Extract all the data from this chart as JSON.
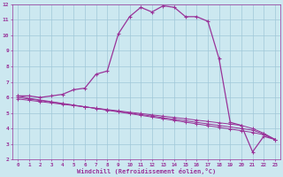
{
  "xlabel": "Windchill (Refroidissement éolien,°C)",
  "background_color": "#cce8f0",
  "grid_color": "#a0c8d8",
  "line_color": "#993399",
  "xlim": [
    -0.5,
    23.5
  ],
  "ylim": [
    2,
    12
  ],
  "xticks": [
    0,
    1,
    2,
    3,
    4,
    5,
    6,
    7,
    8,
    9,
    10,
    11,
    12,
    13,
    14,
    15,
    16,
    17,
    18,
    19,
    20,
    21,
    22,
    23
  ],
  "yticks": [
    2,
    3,
    4,
    5,
    6,
    7,
    8,
    9,
    10,
    11,
    12
  ],
  "main_line_x": [
    0,
    1,
    2,
    3,
    4,
    5,
    6,
    7,
    8,
    9,
    10,
    11,
    12,
    13,
    14,
    15,
    16,
    17,
    18,
    19,
    20,
    21,
    22,
    23
  ],
  "main_line_y": [
    6.1,
    6.1,
    6.0,
    6.1,
    6.2,
    6.5,
    6.6,
    7.5,
    7.7,
    10.1,
    11.2,
    11.8,
    11.5,
    11.9,
    11.8,
    11.2,
    11.2,
    10.9,
    8.5,
    4.4,
    4.2,
    2.5,
    3.5,
    3.3
  ],
  "flat_line1_x": [
    0,
    23
  ],
  "flat_line1_y": [
    6.1,
    3.3
  ],
  "flat_line2_x": [
    0,
    23
  ],
  "flat_line2_y": [
    6.0,
    3.5
  ],
  "flat_line3_x": [
    0,
    23
  ],
  "flat_line3_y": [
    5.9,
    3.7
  ],
  "marker_x": [
    0,
    1,
    2,
    3,
    4,
    5,
    6,
    7,
    8,
    9,
    10,
    11,
    12,
    13,
    14,
    15,
    16,
    17,
    18,
    19,
    20,
    21,
    22,
    23
  ],
  "flat1_marker_y": [
    6.1,
    5.95,
    5.84,
    5.73,
    5.62,
    5.51,
    5.4,
    5.29,
    5.18,
    5.07,
    4.96,
    4.85,
    4.74,
    4.63,
    4.52,
    4.41,
    4.3,
    4.19,
    4.08,
    3.97,
    3.86,
    3.75,
    3.6,
    3.3
  ],
  "flat2_marker_y": [
    6.0,
    5.9,
    5.8,
    5.7,
    5.6,
    5.5,
    5.4,
    5.3,
    5.2,
    5.1,
    5.0,
    4.9,
    4.8,
    4.7,
    4.6,
    4.5,
    4.4,
    4.3,
    4.2,
    4.1,
    4.0,
    3.9,
    3.65,
    3.3
  ],
  "flat3_marker_y": [
    5.9,
    5.82,
    5.73,
    5.65,
    5.56,
    5.48,
    5.39,
    5.31,
    5.22,
    5.14,
    5.05,
    4.97,
    4.88,
    4.8,
    4.71,
    4.63,
    4.54,
    4.46,
    4.37,
    4.29,
    4.2,
    4.0,
    3.7,
    3.3
  ]
}
